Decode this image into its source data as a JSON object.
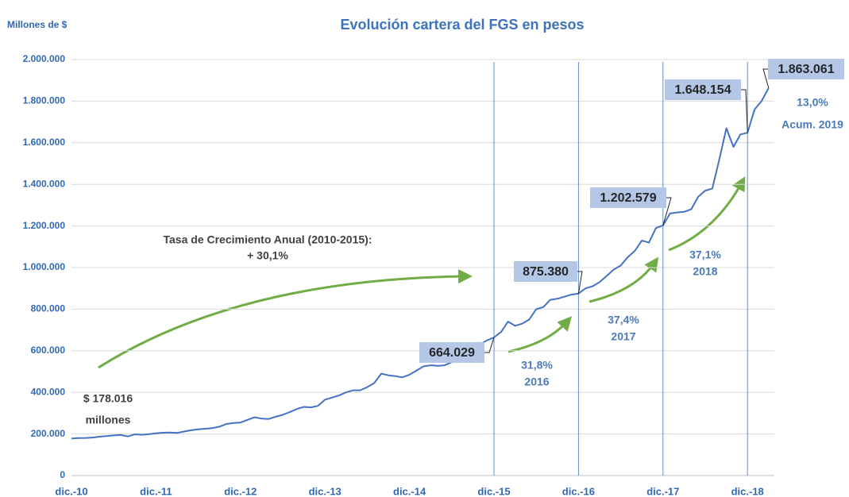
{
  "chart_data": {
    "type": "line",
    "title": "Evolución cartera del FGS en pesos",
    "y_label": "Millones de $",
    "categories": [
      "dic.-10",
      null,
      null,
      null,
      null,
      null,
      null,
      null,
      null,
      null,
      null,
      null,
      "dic.-11",
      null,
      null,
      null,
      null,
      null,
      null,
      null,
      null,
      null,
      null,
      null,
      "dic.-12",
      null,
      null,
      null,
      null,
      null,
      null,
      null,
      null,
      null,
      null,
      null,
      "dic.-13",
      null,
      null,
      null,
      null,
      null,
      null,
      null,
      null,
      null,
      null,
      null,
      "dic.-14",
      null,
      null,
      null,
      null,
      null,
      null,
      null,
      null,
      null,
      null,
      null,
      "dic.-15",
      null,
      null,
      null,
      null,
      null,
      null,
      null,
      null,
      null,
      null,
      null,
      "dic.-16",
      null,
      null,
      null,
      null,
      null,
      null,
      null,
      null,
      null,
      null,
      null,
      "dic.-17",
      null,
      null,
      null,
      null,
      null,
      null,
      null,
      null,
      null,
      null,
      null,
      "dic.-18",
      null,
      null,
      null
    ],
    "series": [
      {
        "name": "Cartera FGS",
        "color": "#4472c4",
        "values": [
          178016,
          180000,
          181000,
          183000,
          187000,
          190000,
          193000,
          195000,
          188000,
          198000,
          196000,
          199000,
          203000,
          206000,
          207000,
          205000,
          212000,
          218000,
          222000,
          225000,
          228000,
          235000,
          248000,
          253000,
          255000,
          268000,
          280000,
          274000,
          272000,
          283000,
          292000,
          305000,
          320000,
          330000,
          328000,
          335000,
          365000,
          375000,
          385000,
          400000,
          410000,
          410000,
          425000,
          445000,
          490000,
          482000,
          478000,
          472000,
          485000,
          505000,
          525000,
          530000,
          528000,
          530000,
          545000,
          560000,
          570000,
          600000,
          630000,
          650000,
          664029,
          690000,
          740000,
          720000,
          730000,
          750000,
          800000,
          810000,
          845000,
          850000,
          860000,
          870000,
          875380,
          900000,
          910000,
          930000,
          960000,
          990000,
          1010000,
          1050000,
          1080000,
          1130000,
          1120000,
          1190000,
          1202579,
          1260000,
          1265000,
          1268000,
          1280000,
          1340000,
          1370000,
          1380000,
          1520000,
          1670000,
          1580000,
          1640000,
          1648154,
          1760000,
          1800000,
          1863061
        ],
        "value_labels": [
          null,
          null,
          null,
          null,
          null,
          null,
          null,
          null,
          null,
          null,
          null,
          null,
          null,
          null,
          null,
          null,
          null,
          null,
          null,
          null,
          null,
          null,
          null,
          null,
          null,
          null,
          null,
          null,
          null,
          null,
          null,
          null,
          null,
          null,
          null,
          null,
          null,
          null,
          null,
          null,
          null,
          null,
          null,
          null,
          null,
          null,
          null,
          null,
          null,
          null,
          null,
          null,
          null,
          null,
          null,
          null,
          null,
          null,
          null,
          null,
          "664.029",
          null,
          null,
          null,
          null,
          null,
          null,
          null,
          null,
          null,
          null,
          null,
          "875.380",
          null,
          null,
          null,
          null,
          null,
          null,
          null,
          null,
          null,
          null,
          null,
          "1.202.579",
          null,
          null,
          null,
          null,
          null,
          null,
          null,
          null,
          null,
          null,
          null,
          "1.648.154",
          null,
          null,
          "1.863.061"
        ]
      }
    ],
    "ylim": [
      0,
      2000000
    ],
    "yticks": [
      0,
      {
        "value": 200000,
        "label": "200.000"
      },
      {
        "value": 400000,
        "label": "400.000"
      },
      {
        "value": 600000,
        "label": "600.000"
      },
      {
        "value": 800000,
        "label": "800.000"
      },
      {
        "value": 1000000,
        "label": "1.000.000"
      },
      {
        "value": 1200000,
        "label": "1.200.000"
      },
      {
        "value": 1400000,
        "label": "1.400.000"
      },
      {
        "value": 1600000,
        "label": "1.600.000"
      },
      {
        "value": 1800000,
        "label": "1.800.000"
      },
      {
        "value": 2000000,
        "label": "2.000.000"
      }
    ],
    "grid": true,
    "annotations": [
      "Tasa de Crecimiento Anual (2010-2015):",
      "+ 30,1%",
      "$ 178.016",
      "millones",
      "31,8%",
      "2016",
      "37,4%",
      "2017",
      "37,1%",
      "2018",
      "13,0%",
      "Acum. 2019"
    ]
  }
}
